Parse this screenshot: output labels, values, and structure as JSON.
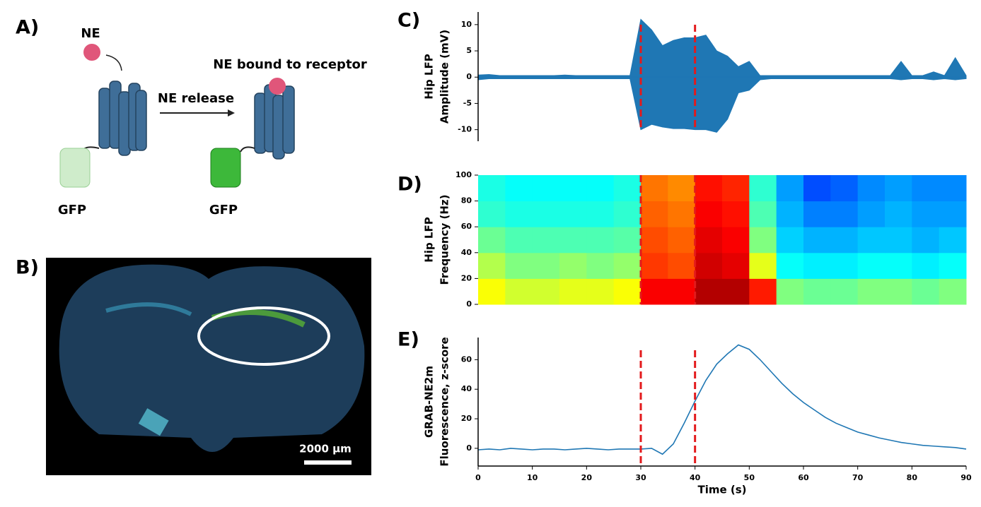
{
  "panels": {
    "a": {
      "label": "A)",
      "ne": "NE",
      "release": "NE release",
      "bound": "NE bound to receptor",
      "gfp_left": "GFP",
      "gfp_right": "GFP"
    },
    "b": {
      "label": "B)",
      "scale_bar": "2000 µm"
    }
  },
  "chart_data": [
    {
      "type": "band",
      "panel_label": "C)",
      "ylabel": [
        "Hip LFP",
        "Amplitude (mV)"
      ],
      "color": "#1f77b4",
      "x": [
        0,
        2,
        4,
        6,
        8,
        10,
        12,
        14,
        16,
        18,
        20,
        22,
        24,
        26,
        28,
        30,
        32,
        34,
        36,
        38,
        40,
        42,
        44,
        46,
        48,
        50,
        52,
        54,
        56,
        58,
        60,
        62,
        64,
        66,
        68,
        70,
        72,
        74,
        76,
        78,
        80,
        82,
        84,
        86,
        88,
        90
      ],
      "upper": [
        0.4,
        0.5,
        0.3,
        0.3,
        0.3,
        0.3,
        0.3,
        0.3,
        0.4,
        0.3,
        0.3,
        0.3,
        0.3,
        0.3,
        0.3,
        11,
        9,
        6,
        7,
        7.5,
        7.5,
        8,
        5,
        4,
        2,
        3,
        0.3,
        0.3,
        0.3,
        0.3,
        0.3,
        0.3,
        0.3,
        0.3,
        0.3,
        0.3,
        0.3,
        0.3,
        0.3,
        3,
        0.3,
        0.3,
        1,
        0.3,
        3.7,
        0.3
      ],
      "lower": [
        -0.5,
        -0.3,
        -0.3,
        -0.3,
        -0.3,
        -0.3,
        -0.3,
        -0.3,
        -0.3,
        -0.3,
        -0.3,
        -0.3,
        -0.3,
        -0.3,
        -0.3,
        -10,
        -9,
        -9.5,
        -9.8,
        -9.8,
        -10,
        -10,
        -10.5,
        -8,
        -3,
        -2.5,
        -0.5,
        -0.3,
        -0.3,
        -0.3,
        -0.3,
        -0.3,
        -0.3,
        -0.3,
        -0.3,
        -0.3,
        -0.3,
        -0.3,
        -0.3,
        -0.5,
        -0.3,
        -0.3,
        -0.5,
        -0.3,
        -0.5,
        -0.3
      ],
      "xlim": [
        0,
        90
      ],
      "ylim": [
        -12.2,
        12.4
      ],
      "yticks": [
        -10,
        -5,
        0,
        5,
        10
      ],
      "vlines": [
        30,
        40
      ],
      "vline_color": "#e31a1c"
    },
    {
      "type": "heatmap",
      "panel_label": "D)",
      "ylabel": [
        "Hip LFP",
        "Frequency (Hz)"
      ],
      "colormap": "jet",
      "xbins": [
        0,
        5,
        10,
        15,
        20,
        25,
        30,
        35,
        40,
        45,
        50,
        55,
        60,
        65,
        70,
        75,
        80,
        85,
        90
      ],
      "ybins": [
        0,
        20,
        40,
        60,
        80,
        100
      ],
      "z": [
        [
          0.62,
          0.58,
          0.58,
          0.6,
          0.6,
          0.62,
          0.88,
          0.88,
          0.95,
          0.95,
          0.85,
          0.5,
          0.48,
          0.48,
          0.5,
          0.5,
          0.48,
          0.5
        ],
        [
          0.55,
          0.5,
          0.5,
          0.52,
          0.5,
          0.52,
          0.82,
          0.8,
          0.92,
          0.9,
          0.6,
          0.38,
          0.36,
          0.36,
          0.38,
          0.38,
          0.36,
          0.38
        ],
        [
          0.48,
          0.45,
          0.45,
          0.45,
          0.45,
          0.46,
          0.8,
          0.78,
          0.9,
          0.88,
          0.5,
          0.33,
          0.3,
          0.3,
          0.32,
          0.32,
          0.3,
          0.32
        ],
        [
          0.42,
          0.4,
          0.4,
          0.4,
          0.4,
          0.42,
          0.78,
          0.76,
          0.88,
          0.86,
          0.45,
          0.3,
          0.25,
          0.25,
          0.28,
          0.3,
          0.28,
          0.28
        ],
        [
          0.4,
          0.38,
          0.38,
          0.38,
          0.38,
          0.4,
          0.76,
          0.74,
          0.86,
          0.84,
          0.42,
          0.28,
          0.2,
          0.22,
          0.26,
          0.28,
          0.26,
          0.26
        ]
      ],
      "zlim": [
        0,
        1
      ],
      "xlim": [
        0,
        90
      ],
      "ylim": [
        0,
        100
      ],
      "yticks": [
        0,
        20,
        40,
        60,
        80,
        100
      ],
      "vlines": [
        30,
        40
      ],
      "vline_color": "#e31a1c"
    },
    {
      "type": "line",
      "panel_label": "E)",
      "ylabel": [
        "GRAB-NE2m",
        "Fluorescence, z-score"
      ],
      "xlabel": "Time (s)",
      "color": "#1f77b4",
      "x": [
        0,
        2,
        4,
        6,
        8,
        10,
        12,
        14,
        16,
        18,
        20,
        22,
        24,
        26,
        28,
        30,
        32,
        34,
        36,
        38,
        40,
        42,
        44,
        46,
        48,
        50,
        52,
        54,
        56,
        58,
        60,
        62,
        64,
        66,
        68,
        70,
        72,
        74,
        76,
        78,
        80,
        82,
        84,
        86,
        88,
        90
      ],
      "values": [
        -1,
        -0.5,
        -1,
        0,
        -0.5,
        -1,
        -0.5,
        -0.5,
        -1,
        -0.5,
        0,
        -0.5,
        -1,
        -0.5,
        -0.5,
        -0.5,
        0,
        -4,
        3,
        17,
        32,
        46,
        57,
        64,
        70,
        67,
        60,
        52,
        44,
        37,
        31,
        26,
        21,
        17,
        14,
        11,
        9,
        7,
        5.5,
        4,
        3,
        2,
        1.5,
        1,
        0.5,
        -0.5
      ],
      "xlim": [
        0,
        90
      ],
      "ylim": [
        -12,
        75
      ],
      "yticks": [
        0,
        20,
        40,
        60
      ],
      "xticks": [
        0,
        10,
        20,
        30,
        40,
        50,
        60,
        70,
        80,
        90
      ],
      "vlines": [
        30,
        40
      ],
      "vline_color": "#e31a1c"
    }
  ]
}
